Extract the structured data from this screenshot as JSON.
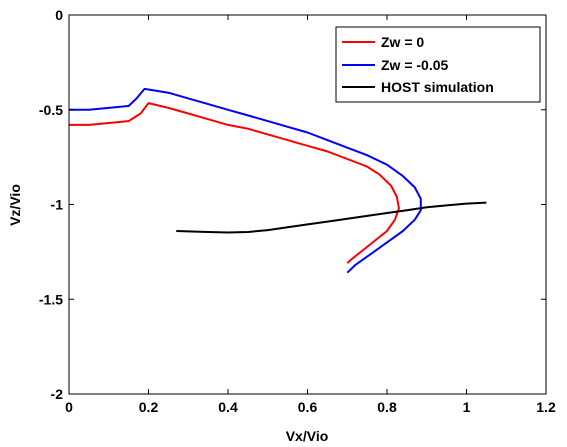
{
  "chart_data": {
    "type": "line",
    "xlabel": "Vx/Vio",
    "ylabel": "Vz/Vio",
    "xlim": [
      0,
      1.2
    ],
    "ylim": [
      -2,
      0
    ],
    "xticks": [
      0,
      0.2,
      0.4,
      0.6,
      0.8,
      1,
      1.2
    ],
    "xtick_labels": [
      "0",
      "0.2",
      "0.4",
      "0.6",
      "0.8",
      "1",
      "1.2"
    ],
    "yticks": [
      0,
      -0.5,
      -1,
      -1.5,
      -2
    ],
    "ytick_labels": [
      "0",
      "-0.5",
      "-1",
      "-1.5",
      "-2"
    ],
    "grid": false,
    "legend_position": "top-right",
    "series": [
      {
        "name": "Zw = 0",
        "color": "#ff0000",
        "x": [
          0.0,
          0.05,
          0.1,
          0.15,
          0.18,
          0.2,
          0.25,
          0.3,
          0.35,
          0.4,
          0.45,
          0.5,
          0.55,
          0.6,
          0.65,
          0.7,
          0.75,
          0.78,
          0.81,
          0.825,
          0.83,
          0.82,
          0.8,
          0.77,
          0.74,
          0.71,
          0.7
        ],
        "y": [
          -0.58,
          -0.58,
          -0.57,
          -0.56,
          -0.52,
          -0.465,
          -0.49,
          -0.52,
          -0.55,
          -0.58,
          -0.6,
          -0.63,
          -0.66,
          -0.69,
          -0.72,
          -0.76,
          -0.8,
          -0.84,
          -0.9,
          -0.96,
          -1.02,
          -1.08,
          -1.14,
          -1.19,
          -1.24,
          -1.29,
          -1.31
        ]
      },
      {
        "name": "Zw = -0.05",
        "color": "#0000ff",
        "x": [
          0.0,
          0.05,
          0.1,
          0.15,
          0.17,
          0.19,
          0.25,
          0.3,
          0.35,
          0.4,
          0.45,
          0.5,
          0.55,
          0.6,
          0.65,
          0.7,
          0.75,
          0.8,
          0.84,
          0.87,
          0.885,
          0.885,
          0.87,
          0.84,
          0.8,
          0.76,
          0.72,
          0.7
        ],
        "y": [
          -0.5,
          -0.5,
          -0.49,
          -0.48,
          -0.44,
          -0.39,
          -0.41,
          -0.44,
          -0.47,
          -0.5,
          -0.53,
          -0.56,
          -0.59,
          -0.62,
          -0.66,
          -0.7,
          -0.74,
          -0.79,
          -0.85,
          -0.91,
          -0.97,
          -1.03,
          -1.08,
          -1.14,
          -1.2,
          -1.26,
          -1.32,
          -1.36
        ]
      },
      {
        "name": "HOST simulation",
        "color": "#000000",
        "x": [
          0.27,
          0.35,
          0.4,
          0.45,
          0.5,
          0.55,
          0.6,
          0.65,
          0.7,
          0.75,
          0.8,
          0.85,
          0.9,
          0.95,
          1.0,
          1.05
        ],
        "y": [
          -1.14,
          -1.145,
          -1.148,
          -1.145,
          -1.135,
          -1.12,
          -1.105,
          -1.09,
          -1.075,
          -1.06,
          -1.045,
          -1.03,
          -1.015,
          -1.005,
          -0.995,
          -0.99
        ]
      }
    ]
  }
}
